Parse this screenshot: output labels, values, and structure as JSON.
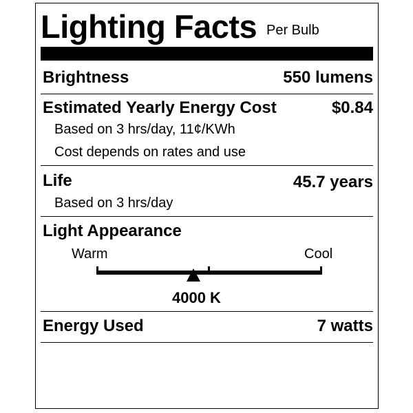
{
  "label": {
    "title": "Lighting Facts",
    "subtitle": "Per Bulb",
    "brightness": {
      "label": "Brightness",
      "value": "550 lumens"
    },
    "energy_cost": {
      "label": "Estimated Yearly Energy Cost",
      "value": "$0.84",
      "notes": [
        "Based on 3 hrs/day, 11¢/KWh",
        "Cost depends on rates and use"
      ]
    },
    "life": {
      "label": "Life",
      "value": "45.7 years",
      "note": "Based on 3 hrs/day"
    },
    "light_appearance": {
      "label": "Light Appearance",
      "warm_label": "Warm",
      "cool_label": "Cool",
      "value": "4000 K",
      "scale_position_fraction": 0.43
    },
    "energy_used": {
      "label": "Energy Used",
      "value": "7 watts"
    }
  }
}
